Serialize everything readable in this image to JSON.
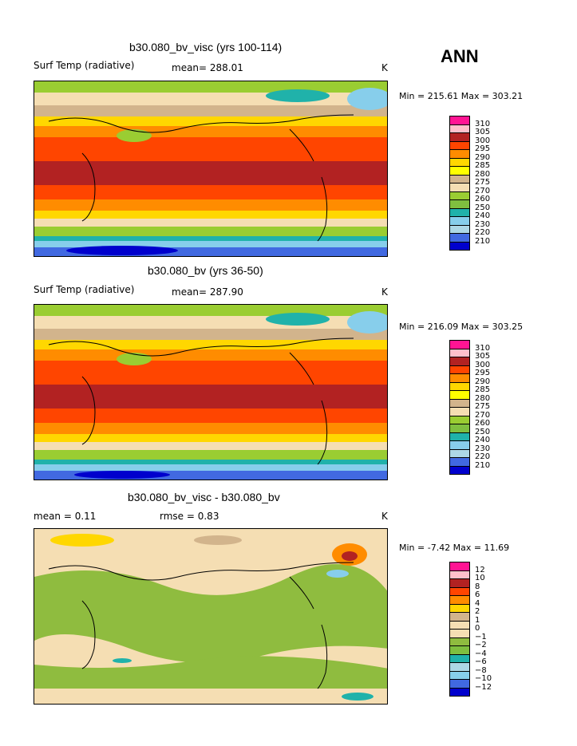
{
  "season": "ANN",
  "colors": {
    "temp": [
      "#ff1493",
      "#ffc0cb",
      "#b22222",
      "#ff4500",
      "#ff8c00",
      "#ffd700",
      "#ffff00",
      "#d2b48c",
      "#f5deb3",
      "#9acd32",
      "#7fbf3f",
      "#20b2aa",
      "#87ceeb",
      "#add8e6",
      "#4169e1",
      "#0000cd",
      "#9370db"
    ],
    "diff": [
      "#ff1493",
      "#ffc0cb",
      "#b22222",
      "#ff4500",
      "#ff8c00",
      "#ffd700",
      "#d2b48c",
      "#f5deb3",
      "#f5deb3",
      "#8fbc3f",
      "#7fbf3f",
      "#20b2aa",
      "#add8e6",
      "#87ceeb",
      "#4169e1",
      "#0000cd",
      "#9370db"
    ]
  },
  "chart_data": [
    {
      "type": "heatmap",
      "title": "b30.080_bv_visc (yrs 100-114)",
      "variable": "Surf Temp (radiative)",
      "mean_label": "mean= 288.01",
      "units": "K",
      "minmax": "Min = 215.61 Max = 303.21",
      "levels": [
        "310",
        "305",
        "300",
        "295",
        "290",
        "285",
        "280",
        "275",
        "270",
        "260",
        "250",
        "240",
        "230",
        "220",
        "210"
      ]
    },
    {
      "type": "heatmap",
      "title": "b30.080_bv (yrs 36-50)",
      "variable": "Surf Temp (radiative)",
      "mean_label": "mean= 287.90",
      "units": "K",
      "minmax": "Min = 216.09 Max = 303.25",
      "levels": [
        "310",
        "305",
        "300",
        "295",
        "290",
        "285",
        "280",
        "275",
        "270",
        "260",
        "250",
        "240",
        "230",
        "220",
        "210"
      ]
    },
    {
      "type": "heatmap",
      "title": "b30.080_bv_visc - b30.080_bv",
      "mean_label": "mean =    0.11",
      "rmse_label": "rmse =    0.83",
      "units": "K",
      "minmax": "Min =   -7.42 Max =   11.69",
      "levels": [
        "12",
        "10",
        "8",
        "6",
        "4",
        "2",
        "1",
        "0",
        "−1",
        "−2",
        "−4",
        "−6",
        "−8",
        "−10",
        "−12"
      ]
    }
  ]
}
